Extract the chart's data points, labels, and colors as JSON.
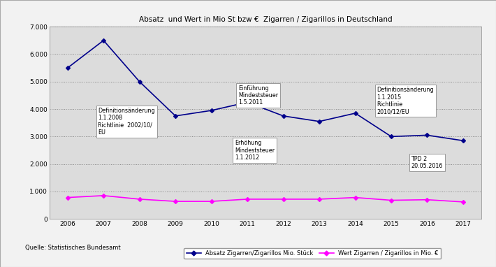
{
  "title": "Absatz  und Wert in Mio St bzw €  Zigarren / Zigarillos in Deutschland",
  "years": [
    2006,
    2007,
    2008,
    2009,
    2010,
    2011,
    2012,
    2013,
    2014,
    2015,
    2016,
    2017
  ],
  "absatz": [
    5.5,
    6.5,
    5.0,
    3.75,
    3.95,
    4.25,
    3.75,
    3.55,
    3.85,
    3.0,
    3.05,
    2.85
  ],
  "wert": [
    0.78,
    0.85,
    0.72,
    0.64,
    0.64,
    0.72,
    0.72,
    0.72,
    0.78,
    0.68,
    0.7,
    0.62
  ],
  "absatz_color": "#00008B",
  "wert_color": "#FF00FF",
  "bg_color": "#DCDCDC",
  "outer_bg": "#FFFFFF",
  "frame_bg": "#F2F2F2",
  "ylim": [
    0,
    7.0
  ],
  "yticks": [
    0,
    1.0,
    2.0,
    3.0,
    4.0,
    5.0,
    6.0,
    7.0
  ],
  "ytick_labels": [
    "0",
    "1.000",
    "2.000",
    "3.000",
    "4.000",
    "5.000",
    "6.000",
    "7.000"
  ],
  "source": "Quelle: Statistisches Bundesamt",
  "legend_absatz": "Absatz Zigarren/Zigarillos Mio. Stück",
  "legend_wert": "Wert Zigarren / Zigarillos in Mio. €"
}
